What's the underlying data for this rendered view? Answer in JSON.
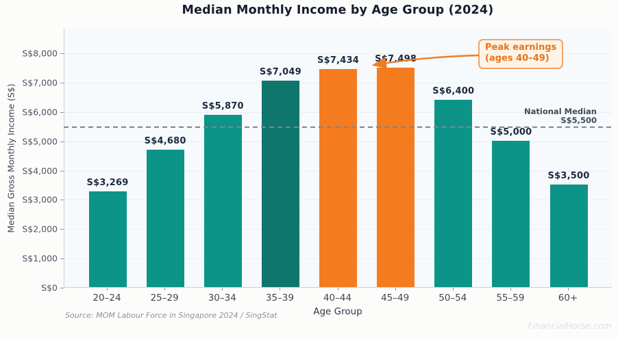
{
  "chart_data": {
    "type": "bar",
    "title": "Median Monthly Income by Age Group (2024)",
    "xlabel": "Age Group",
    "ylabel": "Median Gross Monthly Income (S$)",
    "categories": [
      "20–24",
      "25–29",
      "30–34",
      "35–39",
      "40–44",
      "45–49",
      "50–54",
      "55–59",
      "60+"
    ],
    "values": [
      3269,
      4680,
      5870,
      7049,
      7434,
      7498,
      6400,
      5000,
      3500
    ],
    "value_labels": [
      "S$3,269",
      "S$4,680",
      "S$5,870",
      "S$7,049",
      "S$7,434",
      "S$7,498",
      "S$6,400",
      "S$5,000",
      "S$3,500"
    ],
    "bar_color_roles": [
      "teal",
      "teal",
      "teal",
      "dark_teal",
      "orange",
      "orange",
      "teal",
      "teal",
      "teal"
    ],
    "palette": {
      "teal": "#0d9488",
      "dark_teal": "#0f766e",
      "orange": "#f57b1f"
    },
    "ylim": [
      0,
      8500
    ],
    "yticks": [
      {
        "value": 0,
        "label": "S$0"
      },
      {
        "value": 1000,
        "label": "S$1,000"
      },
      {
        "value": 2000,
        "label": "S$2,000"
      },
      {
        "value": 3000,
        "label": "S$3,000"
      },
      {
        "value": 4000,
        "label": "S$4,000"
      },
      {
        "value": 5000,
        "label": "S$5,000"
      },
      {
        "value": 6000,
        "label": "S$6,000"
      },
      {
        "value": 7000,
        "label": "S$7,000"
      },
      {
        "value": 8000,
        "label": "S$8,000"
      }
    ],
    "grid": "horizontal",
    "median_line": {
      "value": 5500,
      "label_line1": "National Median",
      "label_line2": "S$5,500",
      "line_color": "#7e858f"
    },
    "annotation": {
      "line1": "Peak earnings",
      "line2": "(ages 40–49)",
      "text_color": "#e8731a",
      "border_color": "#f3a263",
      "arrow_color": "#ee7d22"
    },
    "source": "Source: MOM Labour Force in Singapore 2024 / SingStat",
    "watermark": "FinancialHorse.com"
  }
}
